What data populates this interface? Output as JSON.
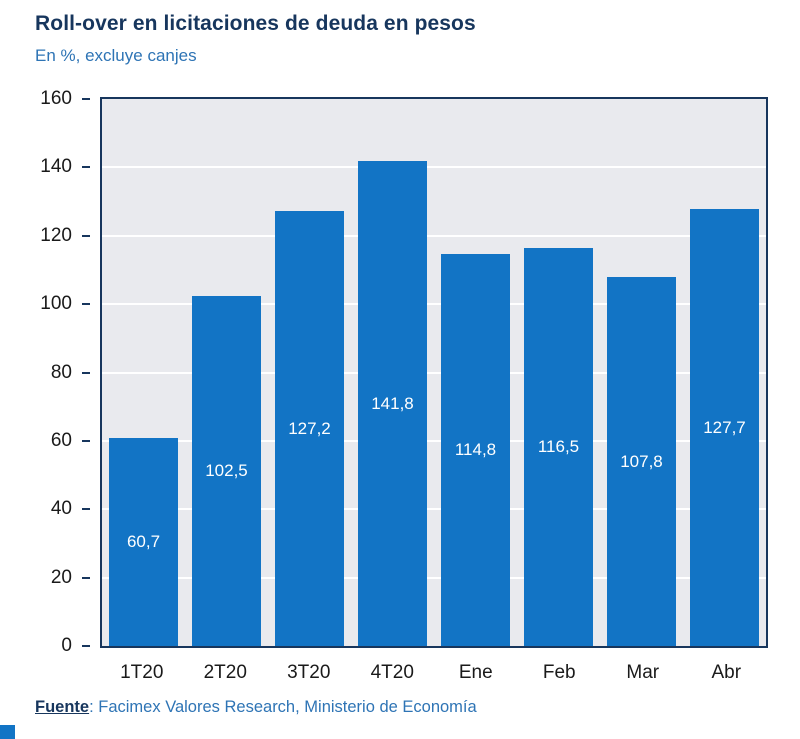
{
  "header": {
    "title": "Roll-over en licitaciones de deuda en pesos",
    "subtitle": "En %, excluye canjes"
  },
  "source": {
    "prefix": "Fuente",
    "text": ": Facimex Valores Research, Ministerio de Economía"
  },
  "chart_data": {
    "type": "bar",
    "title": "Roll-over en licitaciones de deuda en pesos",
    "subtitle": "En %, excluye canjes",
    "categories": [
      "1T20",
      "2T20",
      "3T20",
      "4T20",
      "Ene",
      "Feb",
      "Mar",
      "Abr"
    ],
    "values": [
      60.7,
      102.5,
      127.2,
      141.8,
      114.8,
      116.5,
      107.8,
      127.7
    ],
    "value_labels": [
      "60,7",
      "102,5",
      "127,2",
      "141,8",
      "114,8",
      "116,5",
      "107,8",
      "127,7"
    ],
    "xlabel": "",
    "ylabel": "",
    "ylim": [
      0,
      160
    ],
    "yticks": [
      0,
      20,
      40,
      60,
      80,
      100,
      120,
      140,
      160
    ],
    "grid": "horizontal",
    "legend": "none",
    "colors": {
      "bar": "#1274C5",
      "plot_background": "#E9EAEE",
      "plot_border": "#17365D",
      "gridline": "#FFFFFF",
      "title": "#17365D",
      "subtitle": "#2E74B5",
      "axis_text": "#1A1A1A",
      "value_label_text": "#FFFFFF",
      "source_text": "#2E74B5"
    }
  }
}
